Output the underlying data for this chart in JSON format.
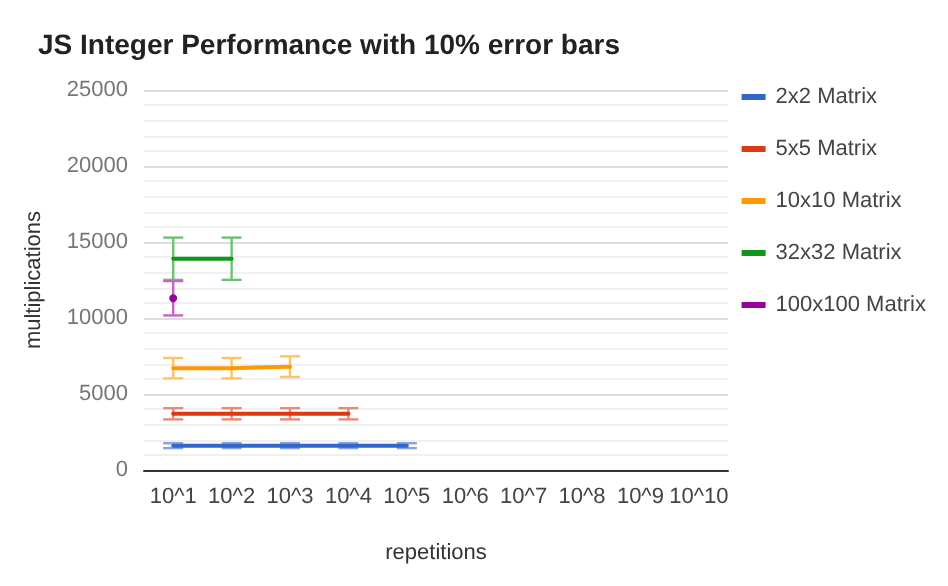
{
  "chart_data": {
    "type": "line",
    "title": "JS Integer Performance with 10% error bars",
    "xlabel": "repetitions",
    "ylabel": "multiplications",
    "categories": [
      "10^1",
      "10^2",
      "10^3",
      "10^4",
      "10^5",
      "10^6",
      "10^7",
      "10^8",
      "10^9",
      "10^10"
    ],
    "series": [
      {
        "name": "2x2 Matrix",
        "color": "#3366cc",
        "values": [
          1600,
          1600,
          1600,
          1600,
          1600,
          null,
          null,
          null,
          null,
          null
        ],
        "errors": [
          160,
          160,
          160,
          160,
          160,
          null,
          null,
          null,
          null,
          null
        ]
      },
      {
        "name": "5x5 Matrix",
        "color": "#dc3912",
        "values": [
          3700,
          3700,
          3700,
          3700,
          null,
          null,
          null,
          null,
          null,
          null
        ],
        "errors": [
          370,
          370,
          370,
          370,
          null,
          null,
          null,
          null,
          null,
          null
        ]
      },
      {
        "name": "10x10 Matrix",
        "color": "#ff9900",
        "values": [
          6700,
          6700,
          6800,
          null,
          null,
          null,
          null,
          null,
          null,
          null
        ],
        "errors": [
          670,
          670,
          680,
          null,
          null,
          null,
          null,
          null,
          null,
          null
        ]
      },
      {
        "name": "32x32 Matrix",
        "color": "#109618",
        "values": [
          13900,
          13900,
          null,
          null,
          null,
          null,
          null,
          null,
          null,
          null
        ],
        "errors": [
          1390,
          1390,
          null,
          null,
          null,
          null,
          null,
          null,
          null,
          null
        ]
      },
      {
        "name": "100x100 Matrix",
        "color": "#990099",
        "marker": "circle",
        "values": [
          11300,
          null,
          null,
          null,
          null,
          null,
          null,
          null,
          null,
          null
        ],
        "errors": [
          1130,
          null,
          null,
          null,
          null,
          null,
          null,
          null,
          null,
          null
        ]
      }
    ],
    "ylim": [
      0,
      25000
    ],
    "yticks": [
      0,
      5000,
      10000,
      15000,
      20000,
      25000
    ],
    "grid": "y",
    "legend": "right",
    "marker": "none",
    "line_style": "solid"
  }
}
